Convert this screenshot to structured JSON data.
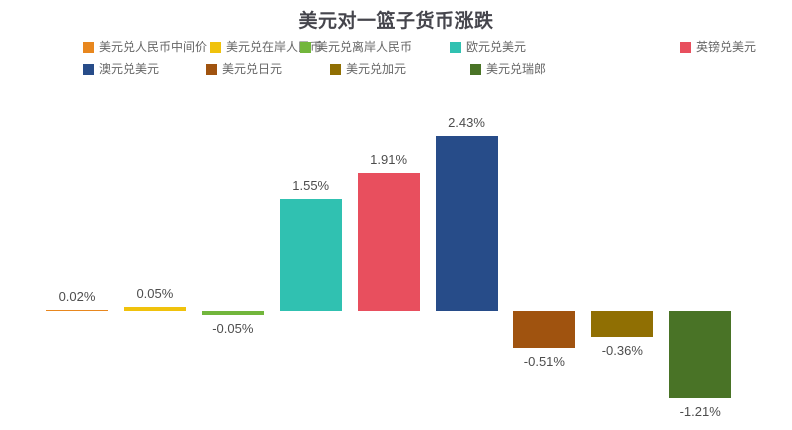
{
  "chart_data": {
    "type": "bar",
    "title": "美元对一篮子货币涨跌",
    "xlabel": "",
    "ylabel": "",
    "unit": "%",
    "ylim": [
      -1.5,
      2.7
    ],
    "grid": false,
    "legend_position": "top",
    "value_labels": true,
    "series": [
      {
        "name": "美元兑人民币中间价",
        "value": 0.02,
        "label": "0.02%",
        "color": "#e8871e"
      },
      {
        "name": "美元兑在岸人民币",
        "value": 0.05,
        "label": "0.05%",
        "color": "#f0c20c"
      },
      {
        "name": "美元兑离岸人民币",
        "value": -0.05,
        "label": "-0.05%",
        "color": "#72b63c"
      },
      {
        "name": "欧元兑美元",
        "value": 1.55,
        "label": "1.55%",
        "color": "#30c1b1"
      },
      {
        "name": "英镑兑美元",
        "value": 1.91,
        "label": "1.91%",
        "color": "#e84f5e"
      },
      {
        "name": "澳元兑美元",
        "value": 2.43,
        "label": "2.43%",
        "color": "#274c89"
      },
      {
        "name": "美元兑日元",
        "value": -0.51,
        "label": "-0.51%",
        "color": "#a0530f"
      },
      {
        "name": "美元兑加元",
        "value": -0.36,
        "label": "-0.36%",
        "color": "#906f03"
      },
      {
        "name": "美元兑瑞郎",
        "value": -1.21,
        "label": "-1.21%",
        "color": "#497326"
      }
    ]
  }
}
